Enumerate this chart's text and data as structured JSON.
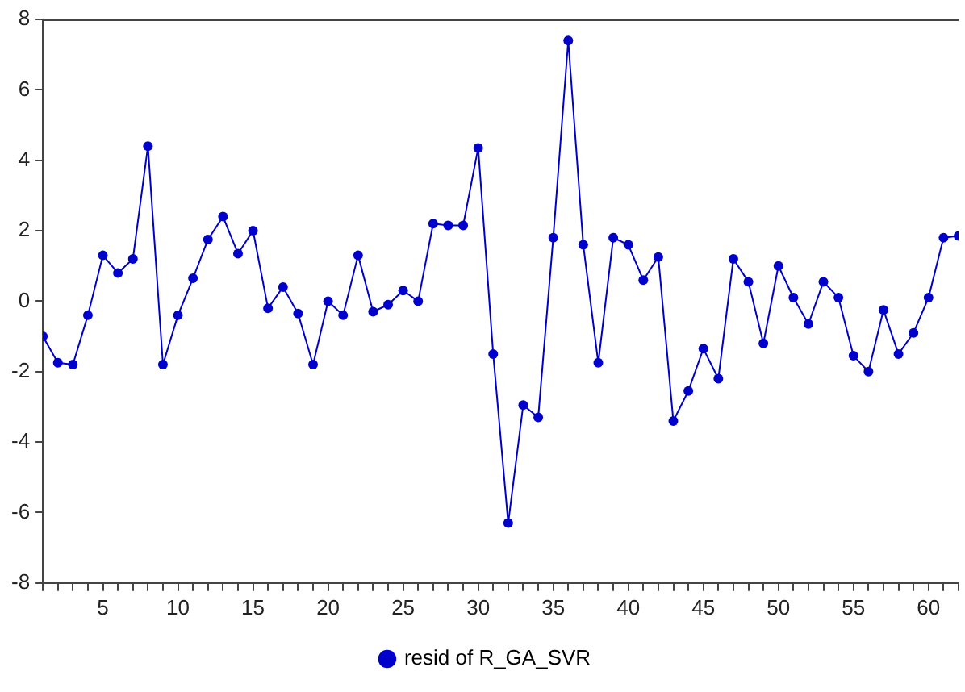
{
  "chart_data": {
    "type": "line",
    "x": [
      1,
      2,
      3,
      4,
      5,
      6,
      7,
      8,
      9,
      10,
      11,
      12,
      13,
      14,
      15,
      16,
      17,
      18,
      19,
      20,
      21,
      22,
      23,
      24,
      25,
      26,
      27,
      28,
      29,
      30,
      31,
      32,
      33,
      34,
      35,
      36,
      37,
      38,
      39,
      40,
      41,
      42,
      43,
      44,
      45,
      46,
      47,
      48,
      49,
      50,
      51,
      52,
      53,
      54,
      55,
      56,
      57,
      58,
      59,
      60,
      61,
      62
    ],
    "series": [
      {
        "name": "resid of R_GA_SVR",
        "color": "#0000cc",
        "values": [
          -1.0,
          -1.75,
          -1.8,
          -0.4,
          1.3,
          0.8,
          1.2,
          4.4,
          -1.8,
          -0.4,
          0.65,
          1.75,
          2.4,
          1.35,
          2.0,
          -0.2,
          0.4,
          -0.35,
          -1.8,
          0.0,
          -0.4,
          1.3,
          -0.3,
          -0.1,
          0.3,
          0.0,
          2.2,
          2.15,
          2.15,
          4.35,
          -1.5,
          -6.3,
          -2.95,
          -3.3,
          1.8,
          7.4,
          1.6,
          -1.75,
          1.8,
          1.6,
          0.6,
          1.25,
          -3.4,
          -2.55,
          -1.35,
          -2.2,
          1.2,
          0.55,
          -1.2,
          1.0,
          0.1,
          -0.65,
          0.55,
          0.1,
          -1.55,
          -2.0,
          -0.25,
          -1.5,
          -0.9,
          0.1,
          1.8,
          1.85
        ]
      }
    ],
    "xlim": [
      1,
      62
    ],
    "xticks": [
      {
        "value": 1,
        "label": null
      },
      {
        "value": 2,
        "label": null
      },
      {
        "value": 3,
        "label": null
      },
      {
        "value": 4,
        "label": null
      },
      5,
      {
        "value": 6,
        "label": null
      },
      {
        "value": 7,
        "label": null
      },
      {
        "value": 8,
        "label": null
      },
      {
        "value": 9,
        "label": null
      },
      10,
      {
        "value": 11,
        "label": null
      },
      {
        "value": 12,
        "label": null
      },
      {
        "value": 13,
        "label": null
      },
      {
        "value": 14,
        "label": null
      },
      15,
      {
        "value": 16,
        "label": null
      },
      {
        "value": 17,
        "label": null
      },
      {
        "value": 18,
        "label": null
      },
      {
        "value": 19,
        "label": null
      },
      20,
      {
        "value": 21,
        "label": null
      },
      {
        "value": 22,
        "label": null
      },
      {
        "value": 23,
        "label": null
      },
      {
        "value": 24,
        "label": null
      },
      25,
      {
        "value": 26,
        "label": null
      },
      {
        "value": 27,
        "label": null
      },
      {
        "value": 28,
        "label": null
      },
      {
        "value": 29,
        "label": null
      },
      30,
      {
        "value": 31,
        "label": null
      },
      {
        "value": 32,
        "label": null
      },
      {
        "value": 33,
        "label": null
      },
      {
        "value": 34,
        "label": null
      },
      35,
      {
        "value": 36,
        "label": null
      },
      {
        "value": 37,
        "label": null
      },
      {
        "value": 38,
        "label": null
      },
      {
        "value": 39,
        "label": null
      },
      40,
      {
        "value": 41,
        "label": null
      },
      {
        "value": 42,
        "label": null
      },
      {
        "value": 43,
        "label": null
      },
      {
        "value": 44,
        "label": null
      },
      45,
      {
        "value": 46,
        "label": null
      },
      {
        "value": 47,
        "label": null
      },
      {
        "value": 48,
        "label": null
      },
      {
        "value": 49,
        "label": null
      },
      50,
      {
        "value": 51,
        "label": null
      },
      {
        "value": 52,
        "label": null
      },
      {
        "value": 53,
        "label": null
      },
      {
        "value": 54,
        "label": null
      },
      55,
      {
        "value": 56,
        "label": null
      },
      {
        "value": 57,
        "label": null
      },
      {
        "value": 58,
        "label": null
      },
      {
        "value": 59,
        "label": null
      },
      60,
      {
        "value": 61,
        "label": null
      },
      {
        "value": 62,
        "label": null
      }
    ],
    "ylim": [
      -8,
      8
    ],
    "yticks": [
      -8,
      -6,
      -4,
      -2,
      0,
      2,
      4,
      6,
      8
    ],
    "grid": false,
    "legend": "bottom",
    "marker": "circle",
    "line_style": "solid"
  }
}
